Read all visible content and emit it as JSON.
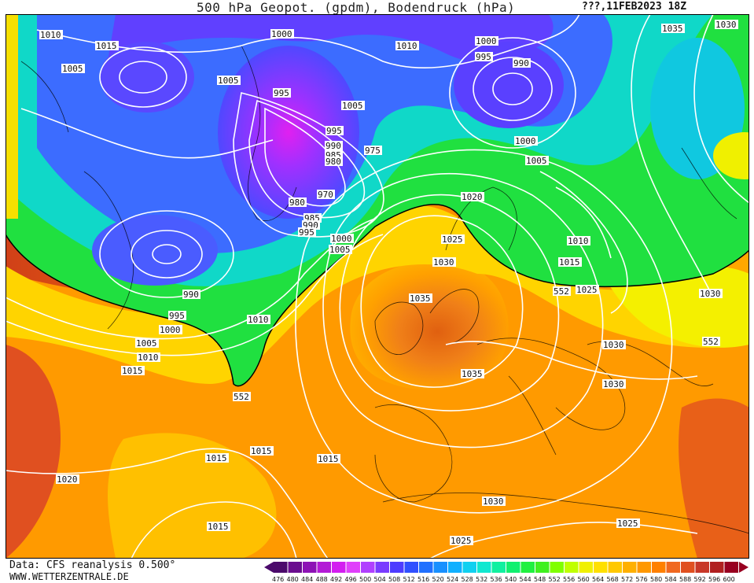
{
  "header": {
    "title": "500 hPa Geopot. (gpdm), Bodendruck (hPa)",
    "run": "???,11FEB2023 18Z"
  },
  "footer": {
    "data_source": "Data: CFS reanalysis 0.500°",
    "website": "WWW.WETTERZENTRALE.DE"
  },
  "legend": {
    "values": [
      "476",
      "480",
      "484",
      "488",
      "492",
      "496",
      "500",
      "504",
      "508",
      "512",
      "516",
      "520",
      "524",
      "528",
      "532",
      "536",
      "540",
      "544",
      "548",
      "552",
      "556",
      "560",
      "564",
      "568",
      "572",
      "576",
      "580",
      "584",
      "588",
      "592",
      "596",
      "600"
    ],
    "colors": [
      "#4b0a6b",
      "#6a0d8f",
      "#8d12b5",
      "#b31ad6",
      "#d31ef0",
      "#e040fb",
      "#b040ff",
      "#7a3cff",
      "#4e3cff",
      "#3050ff",
      "#2070ff",
      "#1890ff",
      "#10b0ff",
      "#10d0f0",
      "#10e8d0",
      "#10f0a0",
      "#10f070",
      "#20f040",
      "#40f020",
      "#80ff00",
      "#c0ff00",
      "#f0f000",
      "#ffe000",
      "#ffc800",
      "#ffb000",
      "#ff9800",
      "#ff8000",
      "#f06820",
      "#e05020",
      "#c83828",
      "#b02020",
      "#980020"
    ]
  },
  "map": {
    "isobar_labels": [
      {
        "text": "1010"
      },
      {
        "text": "1015"
      },
      {
        "text": "1005"
      },
      {
        "text": "1000"
      },
      {
        "text": "1005"
      },
      {
        "text": "995"
      },
      {
        "text": "1010"
      },
      {
        "text": "1000"
      },
      {
        "text": "995"
      },
      {
        "text": "990"
      },
      {
        "text": "1005"
      },
      {
        "text": "1035"
      },
      {
        "text": "1030"
      },
      {
        "text": "995"
      },
      {
        "text": "990"
      },
      {
        "text": "985"
      },
      {
        "text": "980"
      },
      {
        "text": "975"
      },
      {
        "text": "970"
      },
      {
        "text": "980"
      },
      {
        "text": "985"
      },
      {
        "text": "990"
      },
      {
        "text": "995"
      },
      {
        "text": "1000"
      },
      {
        "text": "1005"
      },
      {
        "text": "1000"
      },
      {
        "text": "1005"
      },
      {
        "text": "1020"
      },
      {
        "text": "1025"
      },
      {
        "text": "1030"
      },
      {
        "text": "1035"
      },
      {
        "text": "1010"
      },
      {
        "text": "1015"
      },
      {
        "text": "1025"
      },
      {
        "text": "1030"
      },
      {
        "text": "990"
      },
      {
        "text": "995"
      },
      {
        "text": "1000"
      },
      {
        "text": "1005"
      },
      {
        "text": "1010"
      },
      {
        "text": "1015"
      },
      {
        "text": "1010"
      },
      {
        "text": "1030"
      },
      {
        "text": "1030"
      },
      {
        "text": "1035"
      },
      {
        "text": "552"
      },
      {
        "text": "552"
      },
      {
        "text": "552"
      },
      {
        "text": "1015"
      },
      {
        "text": "1015"
      },
      {
        "text": "1015"
      },
      {
        "text": "1020"
      },
      {
        "text": "1015"
      },
      {
        "text": "1030"
      },
      {
        "text": "1025"
      },
      {
        "text": "1025"
      }
    ]
  }
}
